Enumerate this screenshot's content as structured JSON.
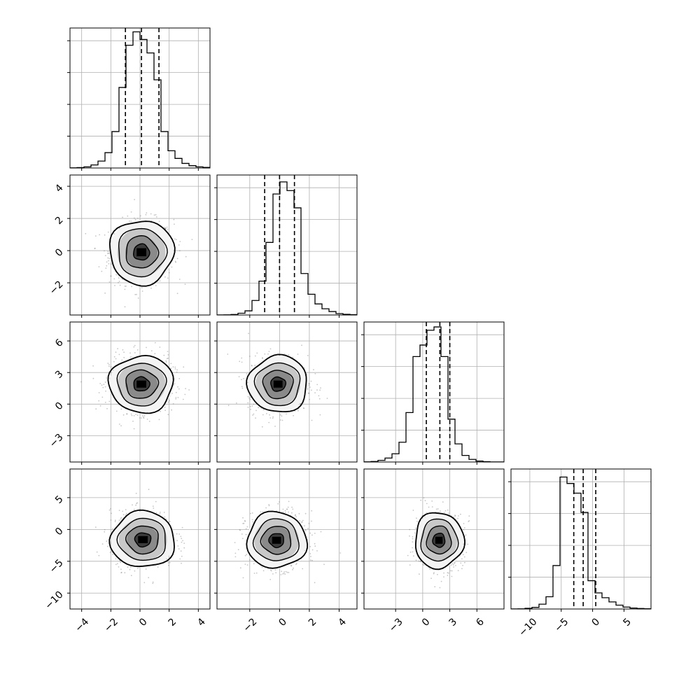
{
  "chart_data": {
    "type": "corner",
    "parameters": 4,
    "grid": true,
    "diagonal": [
      {
        "param": 0,
        "xlim": [
          -4.8,
          4.8
        ],
        "hist_edges_start": -4.8,
        "hist_bin_width": 0.48,
        "hist_values": [
          0.3,
          1,
          3,
          8,
          18,
          40,
          95,
          210,
          320,
          355,
          335,
          300,
          230,
          95,
          45,
          25,
          12,
          6,
          3,
          1.5
        ],
        "ylim": [
          0,
          365
        ],
        "quantiles": [
          -1.0,
          0.1,
          1.3
        ]
      },
      {
        "param": 1,
        "xlim": [
          -4.2,
          5.2
        ],
        "hist_edges_start": -4.2,
        "hist_bin_width": 0.47,
        "hist_values": [
          0.3,
          0.5,
          1.5,
          5,
          12,
          42,
          98,
          210,
          350,
          385,
          360,
          310,
          120,
          60,
          32,
          18,
          10,
          4,
          2,
          1
        ],
        "ylim": [
          0,
          405
        ],
        "quantiles": [
          -1.0,
          0.0,
          1.0
        ]
      },
      {
        "param": 2,
        "xlim": [
          -6.5,
          9.0
        ],
        "hist_edges_start": -6.5,
        "hist_bin_width": 0.775,
        "hist_values": [
          0.5,
          1.5,
          5,
          12,
          25,
          60,
          150,
          320,
          355,
          400,
          410,
          320,
          130,
          55,
          20,
          8,
          3,
          1,
          0.3,
          0.1
        ],
        "ylim": [
          0,
          425
        ],
        "quantiles": [
          0.4,
          1.9,
          3.0
        ]
      },
      {
        "param": 3,
        "xlim": [
          -13,
          9.3
        ],
        "hist_edges_start": -13,
        "hist_bin_width": 1.115,
        "hist_values": [
          0.3,
          0.5,
          2,
          5,
          15,
          38,
          135,
          410,
          390,
          360,
          300,
          88,
          50,
          35,
          22,
          12,
          6,
          3,
          1.5,
          0.8
        ],
        "ylim": [
          0,
          435
        ],
        "quantiles": [
          -3.0,
          -1.5,
          0.5
        ]
      }
    ],
    "row_ylims": [
      null,
      [
        -4,
        4.7
      ],
      [
        -5.5,
        7.8
      ],
      [
        -12.5,
        9.5
      ]
    ],
    "pairs": [
      {
        "row": 1,
        "col": 0,
        "center": [
          0.1,
          -0.1
        ],
        "sigma": [
          1.1,
          1.0
        ]
      },
      {
        "row": 2,
        "col": 0,
        "center": [
          0.1,
          1.9
        ],
        "sigma": [
          1.1,
          1.35
        ]
      },
      {
        "row": 2,
        "col": 1,
        "center": [
          -0.1,
          1.9
        ],
        "sigma": [
          1.0,
          1.35
        ]
      },
      {
        "row": 3,
        "col": 0,
        "center": [
          0.2,
          -1.6
        ],
        "sigma": [
          1.1,
          2.2
        ]
      },
      {
        "row": 3,
        "col": 1,
        "center": [
          -0.2,
          -1.7
        ],
        "sigma": [
          1.0,
          2.2
        ]
      },
      {
        "row": 3,
        "col": 2,
        "center": [
          1.8,
          -1.7
        ],
        "sigma": [
          1.35,
          2.2
        ]
      }
    ],
    "contour_levels_sigma": [
      0.5,
      1.0,
      1.5,
      2.0
    ],
    "tick_labels": {
      "x": [
        [
          "−4",
          "−2",
          "0",
          "2",
          "4"
        ],
        [
          "−2",
          "0",
          "2",
          "4"
        ],
        [
          "−3",
          "0",
          "3",
          "6"
        ],
        [
          "−10",
          "−5",
          "0",
          "5"
        ]
      ],
      "x_values": [
        [
          -4,
          -2,
          0,
          2,
          4
        ],
        [
          -2,
          0,
          2,
          4
        ],
        [
          -3,
          0,
          3,
          6
        ],
        [
          -10,
          -5,
          0,
          5
        ]
      ],
      "y": [
        null,
        [
          "−2",
          "0",
          "2",
          "4"
        ],
        [
          "−3",
          "0",
          "3",
          "6"
        ],
        [
          "−10",
          "−5",
          "0",
          "5"
        ]
      ],
      "y_values": [
        null,
        [
          -2,
          0,
          2,
          4
        ],
        [
          -3,
          0,
          3,
          6
        ],
        [
          -10,
          -5,
          0,
          5
        ]
      ]
    },
    "colors": {
      "hist": "#000000",
      "contour": "#000000",
      "points": "#808080",
      "grid": "#b0b0b0",
      "fill_light": "#ffffff",
      "fill_dark": "#000000"
    }
  }
}
